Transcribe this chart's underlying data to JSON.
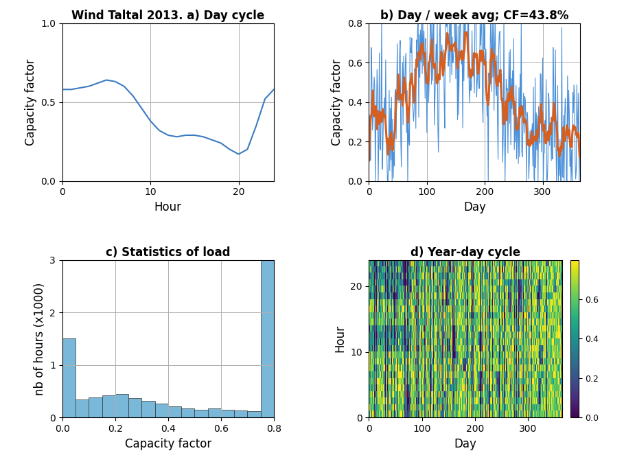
{
  "title_a": "Wind Taltal 2013. a) Day cycle",
  "title_b": "b) Day / week avg; CF=43.8%",
  "title_c": "c) Statistics of load",
  "title_d": "d) Year-day cycle",
  "xlabel_a": "Hour",
  "ylabel_a": "Capacity factor",
  "xlabel_b": "Day",
  "ylabel_b": "Capacity factor",
  "xlabel_c": "Capacity factor",
  "ylabel_c": "nb of hours (x1000)",
  "xlabel_d": "Day",
  "ylabel_d": "Hour",
  "ylim_a": [
    0,
    1
  ],
  "xlim_a": [
    0,
    24
  ],
  "ylim_b": [
    0,
    0.8
  ],
  "xlim_b": [
    0,
    365
  ],
  "ylim_c": [
    0,
    3
  ],
  "xlim_c": [
    0,
    0.8
  ],
  "ylim_d": [
    0,
    24
  ],
  "xlim_d": [
    0,
    365
  ],
  "line_color_a": "#3a7bbf",
  "line_color_b_daily": "#4a90d9",
  "line_color_b_weekly": "#d45f20",
  "bar_color_c": "#7ab8d9",
  "colormap_d": "viridis",
  "background": "#ffffff",
  "grid_color": "#b0b0b0",
  "font_size_title": 12,
  "font_size_label": 12,
  "font_size_tick": 10
}
